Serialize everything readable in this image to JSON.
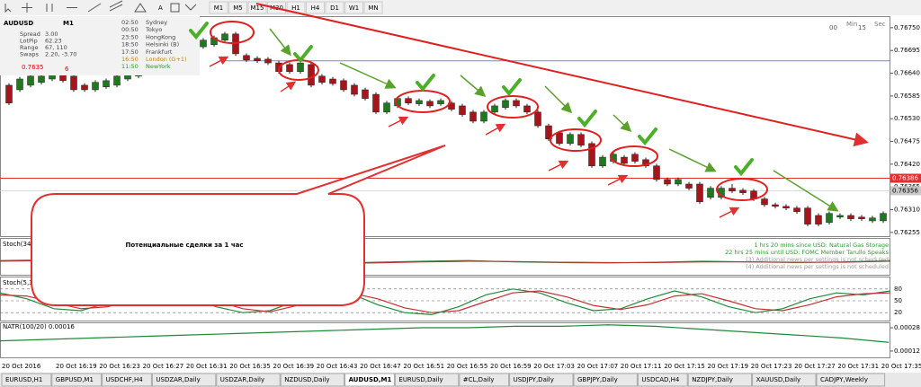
{
  "toolbar": {
    "timeframes": [
      "M1",
      "M5",
      "M15",
      "M30",
      "H1",
      "H4",
      "D1",
      "W1",
      "MN"
    ]
  },
  "price_chart": {
    "ylim": [
      0.76246,
      0.76778
    ],
    "yticks": [
      {
        "value": 0.7675,
        "label": "0.76750"
      },
      0.76695,
      {
        "value": 0.7664,
        "label": "0.76640"
      },
      0.76585,
      {
        "value": 0.7653,
        "label": "0.76530"
      },
      0.76475,
      {
        "value": 0.7642,
        "label": "0.76420"
      },
      0.76365,
      {
        "value": 0.7631,
        "label": "0.76310"
      },
      0.76255
    ],
    "bull_color": "#1e7a1e",
    "bear_color": "#a8141a",
    "levels": [
      {
        "value": 0.7667,
        "color": "#7b7bff"
      },
      {
        "value": 0.76386,
        "color": "#e03030"
      },
      {
        "value": 0.76356,
        "color": "#c8c8c8"
      }
    ],
    "candles": [
      [
        0.76611,
        0.76616,
        0.76563,
        0.76568
      ],
      [
        0.766,
        0.76631,
        0.76595,
        0.76626
      ],
      [
        0.76611,
        0.76638,
        0.76606,
        0.76633
      ],
      [
        0.76618,
        0.76638,
        0.76613,
        0.76633
      ],
      [
        0.76626,
        0.76642,
        0.76621,
        0.76637
      ],
      [
        0.76637,
        0.76642,
        0.76617,
        0.76622
      ],
      [
        0.76633,
        0.76638,
        0.76595,
        0.766
      ],
      [
        0.76611,
        0.76616,
        0.76595,
        0.766
      ],
      [
        0.766,
        0.76623,
        0.76595,
        0.76618
      ],
      [
        0.76607,
        0.76627,
        0.76602,
        0.76622
      ],
      [
        0.76611,
        0.76638,
        0.76606,
        0.76633
      ],
      [
        0.76626,
        0.76649,
        0.76621,
        0.76644
      ],
      [
        0.76633,
        0.76653,
        0.76628,
        0.76648
      ],
      [
        0.76644,
        0.7667,
        0.76639,
        0.76665
      ],
      [
        0.76661,
        0.76681,
        0.76656,
        0.76676
      ],
      [
        0.7667,
        0.76692,
        0.76665,
        0.76687
      ],
      [
        0.76683,
        0.76703,
        0.76678,
        0.76698
      ],
      [
        0.76698,
        0.76714,
        0.76693,
        0.76709
      ],
      [
        0.76704,
        0.76725,
        0.76699,
        0.7672
      ],
      [
        0.76709,
        0.76731,
        0.76704,
        0.76726
      ],
      [
        0.7672,
        0.7674,
        0.76715,
        0.76735
      ],
      [
        0.76735,
        0.7674,
        0.76682,
        0.76687
      ],
      [
        0.76683,
        0.76688,
        0.76667,
        0.76672
      ],
      [
        0.76676,
        0.76681,
        0.76665,
        0.7667
      ],
      [
        0.76674,
        0.76679,
        0.7666,
        0.76665
      ],
      [
        0.76665,
        0.7667,
        0.76639,
        0.76644
      ],
      [
        0.76661,
        0.76666,
        0.76639,
        0.76644
      ],
      [
        0.76644,
        0.7667,
        0.76639,
        0.76665
      ],
      [
        0.76661,
        0.76666,
        0.76606,
        0.76611
      ],
      [
        0.76633,
        0.76638,
        0.76613,
        0.76618
      ],
      [
        0.76626,
        0.76631,
        0.7661,
        0.76615
      ],
      [
        0.76622,
        0.76627,
        0.76595,
        0.766
      ],
      [
        0.76611,
        0.76616,
        0.76584,
        0.76589
      ],
      [
        0.766,
        0.76605,
        0.76574,
        0.76579
      ],
      [
        0.76589,
        0.76594,
        0.76541,
        0.76546
      ],
      [
        0.76546,
        0.76573,
        0.76541,
        0.76568
      ],
      [
        0.76561,
        0.76584,
        0.76556,
        0.76579
      ],
      [
        0.76579,
        0.76584,
        0.76563,
        0.76568
      ],
      [
        0.76566,
        0.76579,
        0.76561,
        0.76574
      ],
      [
        0.76572,
        0.76577,
        0.76556,
        0.76561
      ],
      [
        0.76566,
        0.76579,
        0.76561,
        0.76574
      ],
      [
        0.76568,
        0.76573,
        0.76548,
        0.76553
      ],
      [
        0.76561,
        0.76566,
        0.76535,
        0.7654
      ],
      [
        0.76546,
        0.76551,
        0.76519,
        0.76524
      ],
      [
        0.76524,
        0.76551,
        0.76519,
        0.76546
      ],
      [
        0.76546,
        0.76566,
        0.76541,
        0.76561
      ],
      [
        0.76557,
        0.76579,
        0.76552,
        0.76574
      ],
      [
        0.76574,
        0.76579,
        0.76556,
        0.76561
      ],
      [
        0.76561,
        0.76566,
        0.76541,
        0.76546
      ],
      [
        0.76546,
        0.76551,
        0.76508,
        0.76513
      ],
      [
        0.76513,
        0.76518,
        0.76476,
        0.76481
      ],
      [
        0.76496,
        0.76501,
        0.76465,
        0.7647
      ],
      [
        0.7647,
        0.76497,
        0.76465,
        0.76492
      ],
      [
        0.76492,
        0.76497,
        0.76461,
        0.76466
      ],
      [
        0.7647,
        0.76475,
        0.76411,
        0.76416
      ],
      [
        0.76416,
        0.76442,
        0.76411,
        0.76437
      ],
      [
        0.76427,
        0.76449,
        0.76422,
        0.76444
      ],
      [
        0.76437,
        0.76442,
        0.76417,
        0.76422
      ],
      [
        0.76444,
        0.76449,
        0.76422,
        0.76427
      ],
      [
        0.76431,
        0.76436,
        0.76411,
        0.76416
      ],
      [
        0.76416,
        0.76421,
        0.76378,
        0.76383
      ],
      [
        0.76383,
        0.76388,
        0.76367,
        0.76372
      ],
      [
        0.76372,
        0.76388,
        0.76367,
        0.76383
      ],
      [
        0.76372,
        0.76377,
        0.76357,
        0.76362
      ],
      [
        0.76372,
        0.76377,
        0.76324,
        0.76329
      ],
      [
        0.7634,
        0.76367,
        0.76335,
        0.76362
      ],
      [
        0.7634,
        0.76367,
        0.76335,
        0.76362
      ],
      [
        0.76362,
        0.76372,
        0.7635,
        0.76355
      ],
      [
        0.76357,
        0.76362,
        0.76346,
        0.76351
      ],
      [
        0.76355,
        0.7636,
        0.76331,
        0.76336
      ],
      [
        0.76336,
        0.76341,
        0.76317,
        0.76322
      ],
      [
        0.76322,
        0.76327,
        0.76313,
        0.76318
      ],
      [
        0.76318,
        0.76323,
        0.76309,
        0.76314
      ],
      [
        0.76314,
        0.76319,
        0.763,
        0.76305
      ],
      [
        0.76314,
        0.76319,
        0.7627,
        0.76275
      ],
      [
        0.76296,
        0.76301,
        0.7627,
        0.76275
      ],
      [
        0.76279,
        0.76306,
        0.76274,
        0.76301
      ],
      [
        0.76292,
        0.76301,
        0.76287,
        0.76296
      ],
      [
        0.76296,
        0.76301,
        0.76283,
        0.76288
      ],
      [
        0.76292,
        0.76297,
        0.76283,
        0.76288
      ],
      [
        0.76283,
        0.76295,
        0.76278,
        0.7629
      ],
      [
        0.76283,
        0.76306,
        0.76278,
        0.76301
      ]
    ]
  },
  "info": {
    "symbol": "AUDUSD",
    "timeframe": "M1",
    "stats": [
      [
        "Spread",
        "3.00"
      ],
      [
        "LotPip",
        "62.23"
      ],
      [
        "Range",
        "67, 110"
      ],
      [
        "Swaps",
        "2.20, -3.70"
      ]
    ],
    "price": "0.7635",
    "price_digit": "6",
    "sessions": [
      [
        "02:50",
        "Sydney"
      ],
      [
        "00:50",
        "Tokyo"
      ],
      [
        "23:50",
        "HongKong"
      ],
      [
        "18:50",
        "Helsinki  (B)"
      ],
      [
        "17:50",
        "Frankfurt"
      ],
      [
        "16:50",
        "London  (G+1)"
      ],
      [
        "11:50",
        "NewYork"
      ]
    ]
  },
  "countdown": {
    "min": "00",
    "min_label": "Min",
    "sec": "15",
    "sec_label": "Sec"
  },
  "callout": {
    "text": "Потенциальные сделки за 1 час"
  },
  "stoch_slow": {
    "label": "Stoch(34",
    "ylim": [
      0,
      100
    ],
    "main": [
      40,
      42,
      45,
      38,
      35,
      33,
      30,
      32,
      35,
      38,
      40,
      36,
      34,
      33,
      35,
      38,
      36,
      34,
      36,
      40
    ],
    "signal": [
      38,
      40,
      42,
      40,
      37,
      34,
      32,
      31,
      33,
      36,
      38,
      37,
      35,
      34,
      34,
      36,
      36,
      35,
      35,
      38
    ]
  },
  "news": [
    "1 hrs 20 mins since USD: Natural Gas Storage",
    "22 hrs 25 mins until USD: FOMC Member Tarullo Speaks",
    "(3)  Additional news per settings is not scheduled",
    "(4)  Additional news per settings is not scheduled"
  ],
  "stoch_fast": {
    "label": "Stoch(5,3,3",
    "ylim": [
      0,
      100
    ],
    "levels": [
      80,
      50,
      20
    ],
    "main": [
      70,
      55,
      30,
      25,
      45,
      70,
      75,
      60,
      35,
      20,
      25,
      50,
      72,
      68,
      40,
      20,
      15,
      35,
      65,
      80,
      70,
      45,
      25,
      30,
      55,
      75,
      60,
      35,
      20,
      30,
      55,
      70,
      65,
      75
    ],
    "signal": [
      65,
      62,
      45,
      30,
      35,
      55,
      70,
      68,
      50,
      30,
      22,
      38,
      60,
      70,
      55,
      32,
      20,
      25,
      48,
      70,
      75,
      60,
      38,
      28,
      40,
      62,
      68,
      50,
      30,
      25,
      40,
      60,
      68,
      70
    ]
  },
  "natr": {
    "label": "NATR(100/20) 0.00016",
    "ylim": [
      7.7e-05,
      0.000317
    ],
    "yticks": [
      0.00028,
      0.00012
    ],
    "values": [
      0.00019,
      0.0002,
      0.00021,
      0.00022,
      0.00023,
      0.00024,
      0.00025,
      0.00026,
      0.00027,
      0.00028,
      0.00028,
      0.00029,
      0.00029,
      0.0003,
      0.00029,
      0.00027,
      0.00025,
      0.00023,
      0.00021,
      0.00018
    ]
  },
  "time_axis": {
    "labels": [
      "20 Oct 2016",
      "20 Oct 16:19",
      "20 Oct 16:23",
      "20 Oct 16:27",
      "20 Oct 16:31",
      "20 Oct 16:35",
      "20 Oct 16:39",
      "20 Oct 16:43",
      "20 Oct 16:47",
      "20 Oct 16:51",
      "20 Oct 16:55",
      "20 Oct 16:59",
      "20 Oct 17:03",
      "20 Oct 17:07",
      "20 Oct 17:11",
      "20 Oct 17:15",
      "20 Oct 17:19",
      "20 Oct 17:23",
      "20 Oct 17:27",
      "20 Oct 17:31",
      "20 Oct 17:35"
    ]
  },
  "tabs": {
    "items": [
      "EURUSD,H1",
      "GBPUSD,M1",
      "USDCHF,H4",
      "USDZAR,Daily",
      "USDZAR,Daily",
      "NZDUSD,Daily",
      "AUDUSD,M1",
      "EURUSD,Daily",
      "#CL,Daily",
      "USDJPY,Daily",
      "GBPJPY,Daily",
      "USDCAD,H4",
      "NZDJPY,Daily",
      "XAUUSD,Daily",
      "CADJPY,Weekly"
    ],
    "active": 6
  }
}
